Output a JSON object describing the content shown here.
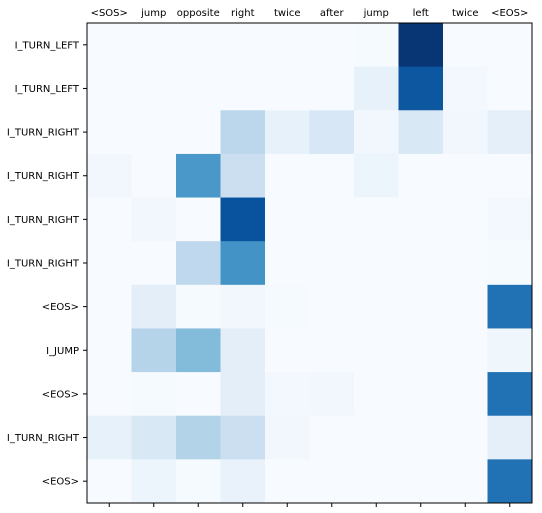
{
  "chart_data": {
    "type": "heatmap",
    "title": "",
    "xlabel": "",
    "ylabel": "",
    "x_labels": [
      "<SOS>",
      "jump",
      "opposite",
      "right",
      "twice",
      "after",
      "jump",
      "left",
      "twice",
      "<EOS>"
    ],
    "y_labels": [
      "I_TURN_LEFT",
      "I_TURN_LEFT",
      "I_TURN_RIGHT",
      "I_TURN_RIGHT",
      "I_TURN_RIGHT",
      "I_TURN_RIGHT",
      "<EOS>",
      "I_JUMP",
      "<EOS>",
      "I_TURN_RIGHT",
      "<EOS>"
    ],
    "colormap": "Blues",
    "vrange": [
      0,
      1
    ],
    "grid": false,
    "values": [
      [
        0.0,
        0.0,
        0.0,
        0.0,
        0.0,
        0.0,
        0.01,
        0.98,
        0.0,
        0.0
      ],
      [
        0.0,
        0.0,
        0.0,
        0.0,
        0.0,
        0.0,
        0.08,
        0.85,
        0.02,
        0.0
      ],
      [
        0.0,
        0.0,
        0.0,
        0.28,
        0.08,
        0.16,
        0.03,
        0.15,
        0.03,
        0.09
      ],
      [
        0.03,
        0.0,
        0.6,
        0.22,
        0.0,
        0.0,
        0.05,
        0.0,
        0.0,
        0.0
      ],
      [
        0.0,
        0.03,
        0.0,
        0.87,
        0.0,
        0.0,
        0.0,
        0.0,
        0.0,
        0.02
      ],
      [
        0.0,
        0.0,
        0.27,
        0.62,
        0.0,
        0.0,
        0.0,
        0.0,
        0.0,
        0.01
      ],
      [
        0.0,
        0.1,
        0.01,
        0.03,
        0.01,
        0.0,
        0.0,
        0.0,
        0.0,
        0.75
      ],
      [
        0.0,
        0.3,
        0.44,
        0.1,
        0.0,
        0.0,
        0.0,
        0.0,
        0.0,
        0.04
      ],
      [
        0.0,
        0.01,
        0.0,
        0.1,
        0.02,
        0.03,
        0.0,
        0.0,
        0.0,
        0.75
      ],
      [
        0.08,
        0.15,
        0.31,
        0.22,
        0.03,
        0.0,
        0.0,
        0.0,
        0.0,
        0.09
      ],
      [
        0.0,
        0.05,
        0.01,
        0.07,
        0.0,
        0.0,
        0.0,
        0.0,
        0.0,
        0.75
      ]
    ]
  }
}
